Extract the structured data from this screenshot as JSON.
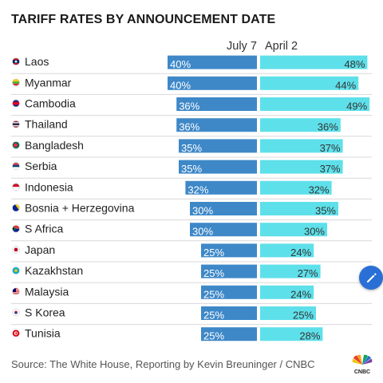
{
  "title": "TARIFF RATES BY ANNOUNCEMENT DATE",
  "columns": {
    "left": "July 7",
    "right": "April 2"
  },
  "source": "Source: The White House, Reporting by Kevin Breuninger / CNBC",
  "logo": {
    "text": "CNBC",
    "name": "cnbc-peacock-logo"
  },
  "colors": {
    "july": "#3e88c8",
    "april": "#5ee0ea",
    "divider": "#d8d8d8",
    "fab": "#2a6fd6"
  },
  "chart_data": {
    "type": "bar",
    "categories": [
      "Laos",
      "Myanmar",
      "Cambodia",
      "Thailand",
      "Bangladesh",
      "Serbia",
      "Indonesia",
      "Bosnia + Herzegovina",
      "S Africa",
      "Japan",
      "Kazakhstan",
      "Malaysia",
      "S Korea",
      "Tunisia"
    ],
    "series": [
      {
        "name": "July 7",
        "values": [
          40,
          40,
          36,
          36,
          35,
          35,
          32,
          30,
          30,
          25,
          25,
          25,
          25,
          25
        ],
        "labels": [
          "40%",
          "40%",
          "36%",
          "36%",
          "35%",
          "35%",
          "32%",
          "30%",
          "30%",
          "25%",
          "25%",
          "25%",
          "25%",
          "25%"
        ]
      },
      {
        "name": "April 2",
        "values": [
          48,
          44,
          49,
          36,
          37,
          37,
          32,
          35,
          30,
          24,
          27,
          24,
          25,
          28
        ],
        "labels": [
          "48%",
          "44%",
          "49%",
          "36%",
          "37%",
          "37%",
          "32%",
          "35%",
          "30%",
          "24%",
          "27%",
          "24%",
          "25%",
          "28%"
        ]
      }
    ],
    "flags": [
      "laos-flag-icon",
      "myanmar-flag-icon",
      "cambodia-flag-icon",
      "thailand-flag-icon",
      "bangladesh-flag-icon",
      "serbia-flag-icon",
      "indonesia-flag-icon",
      "bosnia-flag-icon",
      "south-africa-flag-icon",
      "japan-flag-icon",
      "kazakhstan-flag-icon",
      "malaysia-flag-icon",
      "south-korea-flag-icon",
      "tunisia-flag-icon"
    ],
    "grid": false,
    "legend": "top"
  }
}
